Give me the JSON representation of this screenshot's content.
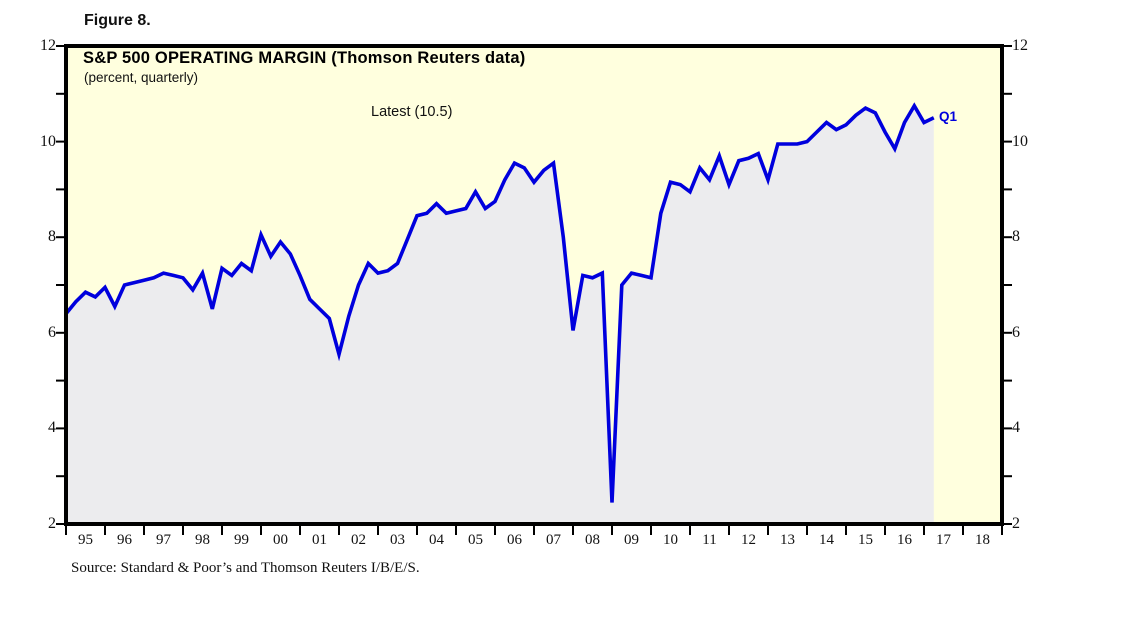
{
  "figure": {
    "label": "Figure 8."
  },
  "chart": {
    "title": "S&P 500 OPERATING MARGIN (Thomson Reuters data)",
    "subtitle": "(percent, quarterly)",
    "annotation": "Latest (10.5)",
    "endpoint_label": "Q1",
    "source": "Source: Standard & Poor’s and Thomson Reuters I/B/E/S."
  },
  "colors": {
    "plot_background": "#FFFFDE",
    "area_fill": "#ECECEE",
    "line": "#0000DD",
    "endpoint_label": "#0000DD",
    "axis": "#000000",
    "text": "#111111"
  },
  "chart_data": {
    "type": "area",
    "title": "S&P 500 OPERATING MARGIN (Thomson Reuters data)",
    "subtitle": "(percent, quarterly)",
    "ylabel": "percent",
    "frequency": "quarterly",
    "grid": false,
    "legend": "none",
    "first_point": "1994-Q4",
    "last_point": "2017-Q1",
    "latest_value": 10.5,
    "x_start": 1995.0,
    "x_step": 0.25,
    "x_axis": {
      "range": [
        1995,
        2019
      ],
      "tick_every_years": 1,
      "year_span_labels": [
        "95",
        "96",
        "97",
        "98",
        "99",
        "00",
        "01",
        "02",
        "03",
        "04",
        "05",
        "06",
        "07",
        "08",
        "09",
        "10",
        "11",
        "12",
        "13",
        "14",
        "15",
        "16",
        "17",
        "18"
      ]
    },
    "y_axis": {
      "range": [
        2,
        12
      ],
      "minor_tick_interval": 1,
      "labeled_ticks": [
        2,
        4,
        6,
        8,
        10,
        12
      ],
      "labels_both_sides": true
    },
    "values": [
      6.4,
      6.65,
      6.85,
      6.75,
      6.95,
      6.55,
      7.0,
      7.05,
      7.1,
      7.15,
      7.25,
      7.2,
      7.15,
      6.9,
      7.25,
      6.5,
      7.35,
      7.2,
      7.45,
      7.3,
      8.05,
      7.6,
      7.9,
      7.65,
      7.2,
      6.7,
      6.5,
      6.3,
      5.55,
      6.35,
      7.0,
      7.45,
      7.25,
      7.3,
      7.45,
      7.95,
      8.45,
      8.5,
      8.7,
      8.5,
      8.55,
      8.6,
      8.95,
      8.6,
      8.75,
      9.2,
      9.55,
      9.45,
      9.15,
      9.4,
      9.55,
      8.0,
      6.05,
      7.2,
      7.15,
      7.25,
      2.45,
      7.0,
      7.25,
      7.2,
      7.15,
      8.5,
      9.15,
      9.1,
      8.95,
      9.45,
      9.2,
      9.7,
      9.1,
      9.6,
      9.65,
      9.75,
      9.2,
      9.95,
      9.95,
      9.95,
      10.0,
      10.2,
      10.4,
      10.25,
      10.35,
      10.55,
      10.7,
      10.6,
      10.2,
      9.85,
      10.4,
      10.75,
      10.4,
      10.5
    ]
  }
}
